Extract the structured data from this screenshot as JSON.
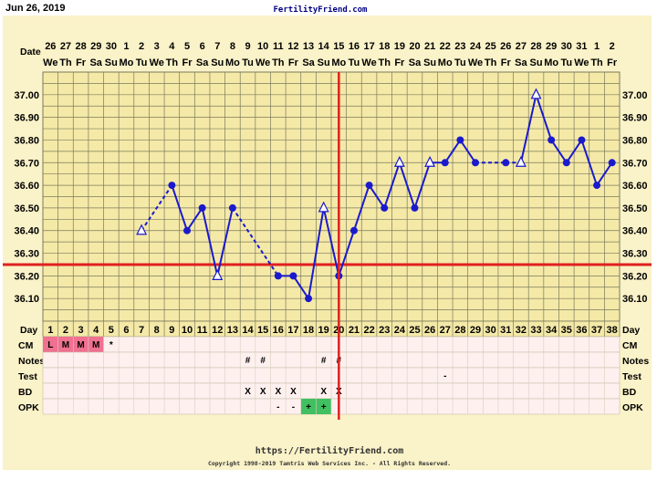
{
  "header": {
    "date": "Jun 26, 2019",
    "site": "FertilityFriend.com",
    "date_row_label": "Date"
  },
  "footer": {
    "url": "https://FertilityFriend.com",
    "copyright": "Copyright 1998-2019 Tamtris Web Services Inc. - All Rights Reserved."
  },
  "colors": {
    "page_bg": "#faf2c8",
    "grid_bg": "#f5e9a8",
    "grid_line": "#7a7a5a",
    "temp_line": "#1a1acc",
    "coverline": "#e02020",
    "ovulation_line": "#e02020",
    "menses_cell": "#f07090",
    "opk_positive": "#40c060",
    "rows_bg": "#fdf0ef"
  },
  "chart_data": {
    "type": "line",
    "title": "",
    "xlabel": "Day",
    "ylabel": "",
    "ylim": [
      36.0,
      37.1
    ],
    "yticks": [
      "37.00",
      "36.90",
      "36.80",
      "36.70",
      "36.60",
      "36.50",
      "36.40",
      "36.30",
      "36.20",
      "36.10"
    ],
    "dates": [
      "26",
      "27",
      "28",
      "29",
      "30",
      "1",
      "2",
      "3",
      "4",
      "5",
      "6",
      "7",
      "8",
      "9",
      "10",
      "11",
      "12",
      "13",
      "14",
      "15",
      "16",
      "17",
      "18",
      "19",
      "20",
      "21",
      "22",
      "23",
      "24",
      "25",
      "26",
      "27",
      "28",
      "29",
      "30",
      "31",
      "1",
      "2"
    ],
    "weekdays": [
      "We",
      "Th",
      "Fr",
      "Sa",
      "Su",
      "Mo",
      "Tu",
      "We",
      "Th",
      "Fr",
      "Sa",
      "Su",
      "Mo",
      "Tu",
      "We",
      "Th",
      "Fr",
      "Sa",
      "Su",
      "Mo",
      "Tu",
      "We",
      "Th",
      "Fr",
      "Sa",
      "Su",
      "Mo",
      "Tu",
      "We",
      "Th",
      "Fr",
      "Sa",
      "Su",
      "Mo",
      "Tu",
      "We",
      "Th",
      "Fr"
    ],
    "cycle_days": [
      "1",
      "2",
      "3",
      "4",
      "5",
      "6",
      "7",
      "8",
      "9",
      "10",
      "11",
      "12",
      "13",
      "14",
      "15",
      "16",
      "17",
      "18",
      "19",
      "20",
      "21",
      "22",
      "23",
      "24",
      "25",
      "26",
      "27",
      "28",
      "29",
      "30",
      "31",
      "32",
      "33",
      "34",
      "35",
      "36",
      "37",
      "38"
    ],
    "series": [
      {
        "points": [
          {
            "day": 7,
            "temp": 36.4,
            "discarded": true
          },
          {
            "day": 9,
            "temp": 36.6,
            "discarded": false
          },
          {
            "day": 10,
            "temp": 36.4,
            "discarded": false
          },
          {
            "day": 11,
            "temp": 36.5,
            "discarded": false
          },
          {
            "day": 12,
            "temp": 36.2,
            "discarded": true
          },
          {
            "day": 13,
            "temp": 36.5,
            "discarded": false
          },
          {
            "day": 16,
            "temp": 36.2,
            "discarded": false
          },
          {
            "day": 17,
            "temp": 36.2,
            "discarded": false
          },
          {
            "day": 18,
            "temp": 36.1,
            "discarded": false
          },
          {
            "day": 19,
            "temp": 36.5,
            "discarded": true
          },
          {
            "day": 20,
            "temp": 36.2,
            "discarded": false
          },
          {
            "day": 21,
            "temp": 36.4,
            "discarded": false
          },
          {
            "day": 22,
            "temp": 36.6,
            "discarded": false
          },
          {
            "day": 23,
            "temp": 36.5,
            "discarded": false
          },
          {
            "day": 24,
            "temp": 36.7,
            "discarded": true
          },
          {
            "day": 25,
            "temp": 36.5,
            "discarded": false
          },
          {
            "day": 26,
            "temp": 36.7,
            "discarded": true
          },
          {
            "day": 27,
            "temp": 36.7,
            "discarded": false
          },
          {
            "day": 28,
            "temp": 36.8,
            "discarded": false
          },
          {
            "day": 29,
            "temp": 36.7,
            "discarded": false
          },
          {
            "day": 31,
            "temp": 36.7,
            "discarded": false
          },
          {
            "day": 32,
            "temp": 36.7,
            "discarded": true
          },
          {
            "day": 33,
            "temp": 37.0,
            "discarded": true
          },
          {
            "day": 34,
            "temp": 36.8,
            "discarded": false
          },
          {
            "day": 35,
            "temp": 36.7,
            "discarded": false
          },
          {
            "day": 36,
            "temp": 36.8,
            "discarded": false
          },
          {
            "day": 37,
            "temp": 36.6,
            "discarded": false
          },
          {
            "day": 38,
            "temp": 36.7,
            "discarded": false
          }
        ],
        "dashed_segments": [
          [
            7,
            9
          ],
          [
            13,
            16
          ],
          [
            29,
            31
          ],
          [
            31,
            32
          ]
        ]
      }
    ],
    "coverline": 36.25,
    "ovulation_day": 20,
    "grid": true,
    "rows": [
      {
        "label": "CM",
        "cells": {
          "1": "L",
          "2": "M",
          "3": "M",
          "4": "M",
          "5": "*"
        },
        "highlight_days": [
          1,
          2,
          3,
          4
        ]
      },
      {
        "label": "Notes",
        "cells": {
          "14": "#",
          "15": "#",
          "19": "#",
          "20": "#"
        },
        "highlight_days": []
      },
      {
        "label": "Test",
        "cells": {
          "27": "-"
        },
        "highlight_days": []
      },
      {
        "label": "BD",
        "cells": {
          "14": "X",
          "15": "X",
          "16": "X",
          "17": "X",
          "19": "X",
          "20": "X"
        },
        "highlight_days": []
      },
      {
        "label": "OPK",
        "cells": {
          "16": "-",
          "17": "-",
          "18": "+",
          "19": "+"
        },
        "highlight_days": [
          18,
          19
        ]
      }
    ],
    "day_row_label": "Day"
  }
}
